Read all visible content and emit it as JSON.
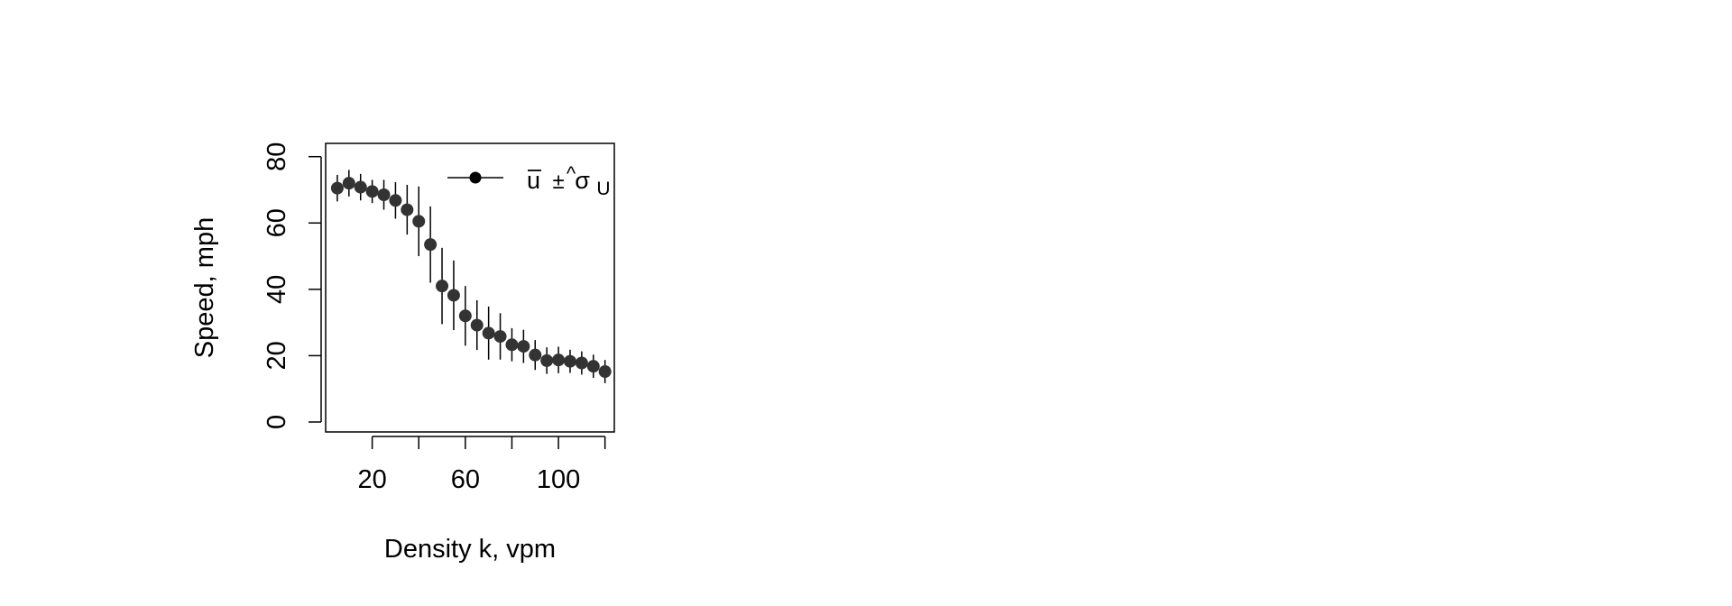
{
  "chart_data": {
    "type": "scatter",
    "title": "",
    "xlabel": "Density k, vpm",
    "ylabel": "Speed, mph",
    "xlim": [
      0,
      124
    ],
    "ylim": [
      -3,
      84
    ],
    "xticks": [
      20,
      40,
      60,
      80,
      100,
      120
    ],
    "xtick_labels": [
      "20",
      "",
      "60",
      "",
      "100",
      ""
    ],
    "yticks": [
      0,
      20,
      40,
      60,
      80
    ],
    "ytick_labels": [
      "0",
      "20",
      "40",
      "60",
      "80"
    ],
    "grid": false,
    "legend": {
      "position": "top-right",
      "entries": [
        {
          "base": "u",
          "pm": "±",
          "sigma": "σ",
          "sub": "U"
        }
      ]
    },
    "colors": {
      "points": "#333333",
      "error_bars": "#000000"
    },
    "series": [
      {
        "x": [
          5,
          10,
          15,
          20,
          25,
          30,
          35,
          40,
          45,
          50,
          55,
          60,
          65,
          70,
          75,
          80,
          85,
          90,
          95,
          100,
          105,
          110,
          115,
          120
        ],
        "y": [
          70.5,
          72,
          70.8,
          69.5,
          68.5,
          66.8,
          64,
          60.5,
          53.5,
          41,
          38.2,
          32,
          29.2,
          26.8,
          25.8,
          23.3,
          22.8,
          20.2,
          18.5,
          18.7,
          18.3,
          17.8,
          16.8,
          15.2
        ],
        "err": [
          4,
          4,
          4,
          3.5,
          4.5,
          5.5,
          7.5,
          10.5,
          11.5,
          11.5,
          10.5,
          9,
          7.5,
          8,
          7,
          5,
          5,
          4.5,
          4,
          4,
          3.5,
          3.5,
          3.5,
          3.5
        ]
      }
    ]
  }
}
